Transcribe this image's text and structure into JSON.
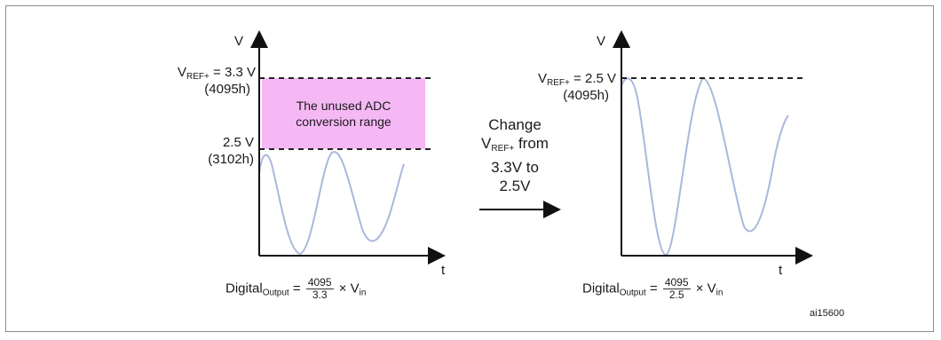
{
  "left_panel": {
    "axis_v": "V",
    "axis_t": "t",
    "vref_prefix": "V",
    "vref_sub": "REF+",
    "vref_value": "= 3.3 V",
    "vref_code": "(4095h)",
    "mid_value": "2.5 V",
    "mid_code": "(3102h)",
    "unused_range_label": "The unused ADC conversion range",
    "formula": {
      "prefix": "Digital",
      "sub": "Output",
      "eq": "=",
      "num": "4095",
      "den": "3.3",
      "times": "× V",
      "vin_sub": "in"
    }
  },
  "transition": {
    "line1": "Change",
    "line2_prefix": "V",
    "line2_sub": "REF+",
    "line2_suffix": " from",
    "line3": "3.3V to",
    "line4": "2.5V"
  },
  "right_panel": {
    "axis_v": "V",
    "axis_t": "t",
    "vref_prefix": "V",
    "vref_sub": "REF+",
    "vref_value": "= 2.5 V",
    "vref_code": "(4095h)",
    "formula": {
      "prefix": "Digital",
      "sub": "Output",
      "eq": "=",
      "num": "4095",
      "den": "2.5",
      "times": "× V",
      "vin_sub": "in"
    }
  },
  "figure_id": "ai15600",
  "colors": {
    "unused_box": "#f5b8f5",
    "wave": "#aab8dc",
    "axis": "#111111",
    "frame": "#8c8c8c"
  }
}
